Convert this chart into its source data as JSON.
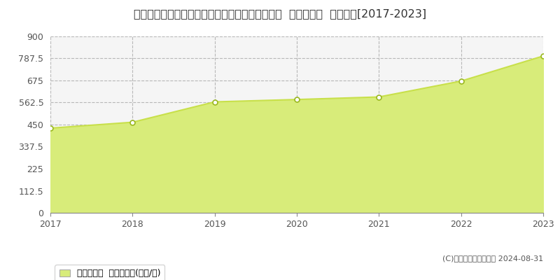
{
  "title": "神奈川県横浜市西区みなとみらい４丁目４番７外  基準地価格  地価推移[2017-2023]",
  "years": [
    2017,
    2018,
    2019,
    2020,
    2021,
    2022,
    2023
  ],
  "values": [
    432,
    462,
    566,
    578,
    591,
    672,
    800
  ],
  "ylim": [
    0,
    900
  ],
  "yticks": [
    0,
    112.5,
    225,
    337.5,
    450,
    562.5,
    675,
    787.5,
    900
  ],
  "ytick_labels": [
    "0",
    "112.5",
    "225",
    "337.5",
    "450",
    "562.5",
    "675",
    "787.5",
    "900"
  ],
  "line_color": "#c8e04a",
  "fill_color": "#d8ec7a",
  "marker_face_color": "#ffffff",
  "marker_edge_color": "#9ab820",
  "bg_color": "#ffffff",
  "plot_bg_color": "#f5f5f5",
  "grid_color": "#b8b8b8",
  "legend_label": "基準地価格  平均坪単価(万円/坪)",
  "copyright_text": "(C)土地価格ドットコム 2024-08-31",
  "title_fontsize": 11.5,
  "axis_fontsize": 9,
  "legend_fontsize": 9
}
